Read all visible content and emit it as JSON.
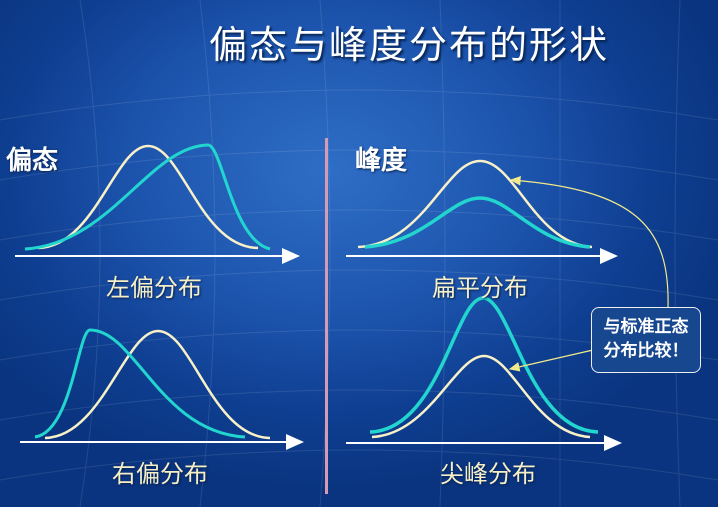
{
  "title": "偏态与峰度分布的形状",
  "skew": {
    "label": "偏态",
    "left_caption": "左偏分布",
    "right_caption": "右偏分布"
  },
  "kurtosis": {
    "label": "峰度",
    "flat_caption": "扁平分布",
    "peaked_caption": "尖峰分布"
  },
  "note": {
    "line1": "与标准正态",
    "line2": "分布比较！"
  },
  "colors": {
    "normal_curve": "#f8f1c8",
    "compared_curve": "#22d6cf",
    "axis": "#ffffff",
    "divider": "#d59ab4",
    "callout_line": "#f2ea8a"
  }
}
